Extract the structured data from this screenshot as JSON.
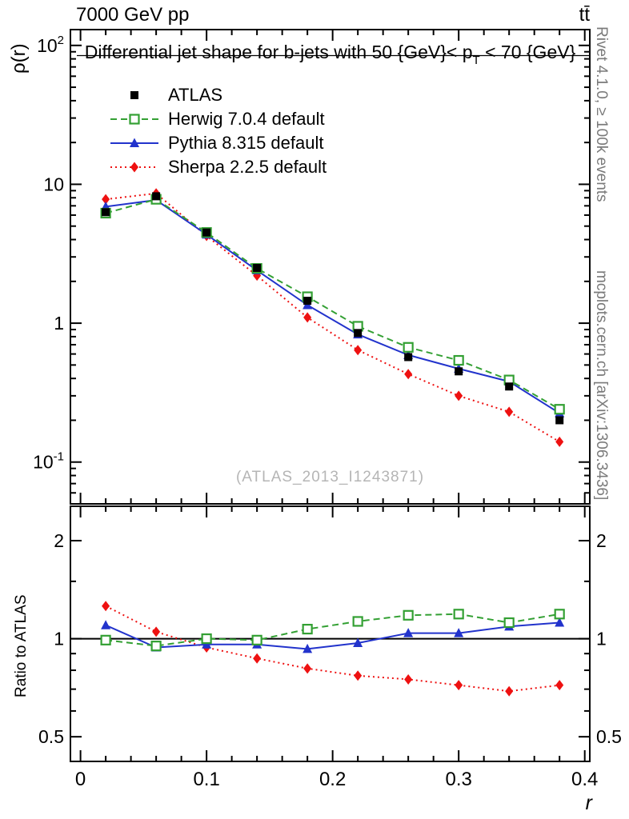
{
  "header": {
    "left": "7000 GeV pp",
    "right": "tt̄"
  },
  "title": {
    "pre": "Differential jet shape for b-jets with 50 {GeV}< p",
    "sub": "T",
    "post": " < 70 {GeV}"
  },
  "axes": {
    "y_label": "ρ(r)",
    "ratio_label": "Ratio to ATLAS",
    "x_label": "r"
  },
  "side_notes": {
    "top": "Rivet 4.1.0, ≥ 100k events",
    "bottom": "mcplots.cern.ch [arXiv:1306.3436]"
  },
  "watermark": "(ATLAS_2013_I1243871)",
  "legend": [
    {
      "id": "atlas",
      "label": "ATLAS"
    },
    {
      "id": "herwig",
      "label": "Herwig 7.0.4 default"
    },
    {
      "id": "pythia",
      "label": "Pythia 8.315 default"
    },
    {
      "id": "sherpa",
      "label": "Sherpa 2.2.5 default"
    }
  ],
  "colors": {
    "atlas": "#000000",
    "herwig": "#33a033",
    "pythia": "#2233cc",
    "sherpa": "#ee1111",
    "frame": "#000000",
    "side_note": "#7a7a7a",
    "watermark": "#b5b5b5"
  },
  "chart_data": [
    {
      "type": "line",
      "panel": "main",
      "title": "Differential jet shape for b-jets with 50 {GeV}< p_T < 70 {GeV}",
      "xlabel": "r",
      "ylabel": "ρ(r)",
      "yscale": "log",
      "grid": false,
      "legend_position": "top-left",
      "xlim": [
        -0.008,
        0.404
      ],
      "ylim": [
        0.05,
        130
      ],
      "x": [
        0.02,
        0.06,
        0.1,
        0.14,
        0.18,
        0.22,
        0.26,
        0.3,
        0.34,
        0.38
      ],
      "xticks": {
        "values": [
          0,
          0.1,
          0.2,
          0.3,
          0.4
        ],
        "labels": [
          "0",
          "0.1",
          "0.2",
          "0.3",
          "0.4"
        ],
        "minor_step": 0.02
      },
      "yticks": {
        "values": [
          100,
          10,
          1,
          0.1
        ],
        "labels": [
          "10^2",
          "10",
          "1",
          "10^-1"
        ]
      },
      "series": [
        {
          "name": "ATLAS",
          "style": "atlas",
          "values": [
            6.3,
            8.2,
            4.5,
            2.5,
            1.45,
            0.85,
            0.57,
            0.45,
            0.35,
            0.2
          ]
        },
        {
          "name": "Herwig 7.0.4 default",
          "style": "herwig",
          "values": [
            6.2,
            7.8,
            4.5,
            2.48,
            1.55,
            0.95,
            0.67,
            0.54,
            0.39,
            0.24
          ]
        },
        {
          "name": "Pythia 8.315 default",
          "style": "pythia",
          "values": [
            6.9,
            7.7,
            4.35,
            2.4,
            1.35,
            0.83,
            0.59,
            0.47,
            0.38,
            0.225
          ]
        },
        {
          "name": "Sherpa 2.2.5 default",
          "style": "sherpa",
          "values": [
            7.8,
            8.6,
            4.25,
            2.2,
            1.1,
            0.64,
            0.43,
            0.3,
            0.23,
            0.14
          ]
        }
      ]
    },
    {
      "type": "line",
      "panel": "ratio",
      "ylabel": "Ratio to ATLAS",
      "yscale": "log",
      "grid": false,
      "reference_line": 1,
      "xlim": [
        -0.008,
        0.404
      ],
      "ylim": [
        0.42,
        2.55
      ],
      "x": [
        0.02,
        0.06,
        0.1,
        0.14,
        0.18,
        0.22,
        0.26,
        0.3,
        0.34,
        0.38
      ],
      "xticks": {
        "values": [
          0,
          0.1,
          0.2,
          0.3,
          0.4
        ],
        "labels": [
          "0",
          "0.1",
          "0.2",
          "0.3",
          "0.4"
        ],
        "minor_step": 0.02
      },
      "yticks": {
        "values": [
          2,
          1,
          0.5
        ],
        "labels": [
          "2",
          "1",
          "0.5"
        ],
        "minor": [
          0.6,
          0.7,
          0.8,
          0.9,
          1.5
        ]
      },
      "series": [
        {
          "name": "Herwig 7.0.4 default",
          "style": "herwig",
          "values": [
            0.99,
            0.95,
            1.0,
            0.99,
            1.07,
            1.13,
            1.18,
            1.19,
            1.12,
            1.19
          ]
        },
        {
          "name": "Pythia 8.315 default",
          "style": "pythia",
          "values": [
            1.1,
            0.94,
            0.96,
            0.96,
            0.93,
            0.97,
            1.04,
            1.04,
            1.09,
            1.12
          ]
        },
        {
          "name": "Sherpa 2.2.5 default",
          "style": "sherpa",
          "values": [
            1.26,
            1.05,
            0.94,
            0.87,
            0.81,
            0.77,
            0.75,
            0.72,
            0.69,
            0.72
          ]
        }
      ]
    }
  ]
}
